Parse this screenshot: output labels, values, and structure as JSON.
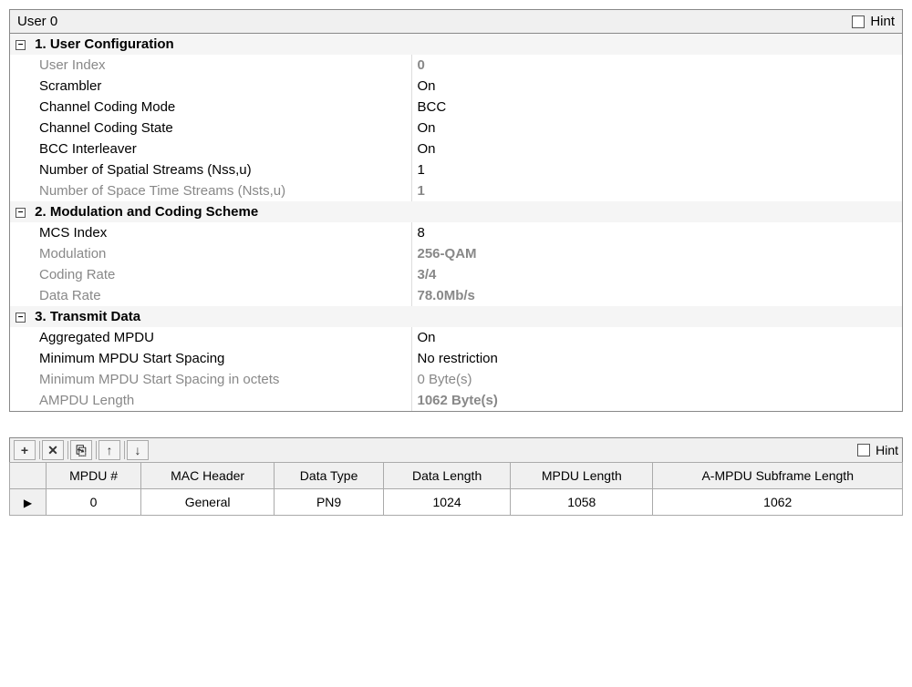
{
  "header": {
    "title": "User 0",
    "hint_label": "Hint"
  },
  "sections": {
    "s1": {
      "title": "1. User Configuration"
    },
    "s2": {
      "title": "2. Modulation and Coding Scheme"
    },
    "s3": {
      "title": "3. Transmit Data"
    }
  },
  "props": {
    "user_index": {
      "label": "User Index",
      "value": "0",
      "readonly": true,
      "boldval": true
    },
    "scrambler": {
      "label": "Scrambler",
      "value": "On"
    },
    "ch_coding_mode": {
      "label": "Channel Coding Mode",
      "value": "BCC"
    },
    "ch_coding_state": {
      "label": "Channel Coding State",
      "value": "On"
    },
    "bcc_interleaver": {
      "label": "BCC Interleaver",
      "value": "On"
    },
    "nss": {
      "label": "Number of Spatial Streams (Nss,u)",
      "value": "1"
    },
    "nsts": {
      "label": "Number of Space Time Streams (Nsts,u)",
      "value": "1",
      "readonly": true,
      "boldval": true
    },
    "mcs_index": {
      "label": "MCS Index",
      "value": "8"
    },
    "modulation": {
      "label": "Modulation",
      "value": "256-QAM",
      "readonly": true,
      "boldval": true
    },
    "coding_rate": {
      "label": "Coding Rate",
      "value": "3/4",
      "readonly": true,
      "boldval": true
    },
    "data_rate": {
      "label": "Data Rate",
      "value": "78.0Mb/s",
      "readonly": true,
      "boldval": true
    },
    "agg_mpdu": {
      "label": "Aggregated MPDU",
      "value": "On"
    },
    "min_mpdu_spacing": {
      "label": "Minimum MPDU Start Spacing",
      "value": "No restriction"
    },
    "min_mpdu_octets": {
      "label": "Minimum MPDU Start Spacing in octets",
      "value": "0 Byte(s)",
      "readonly": true
    },
    "ampdu_length": {
      "label": "AMPDU Length",
      "value": "1062 Byte(s)",
      "readonly": true,
      "boldval": true
    }
  },
  "toolbar": {
    "hint_label": "Hint"
  },
  "table": {
    "columns": [
      "MPDU #",
      "MAC Header",
      "Data Type",
      "Data Length",
      "MPDU Length",
      "A-MPDU Subframe Length"
    ],
    "rows": [
      {
        "indicator": "▶",
        "cells": [
          "0",
          "General",
          "PN9",
          "1024",
          "1058",
          "1062"
        ]
      }
    ]
  },
  "colors": {
    "border": "#888888",
    "header_bg": "#f0f0f0",
    "readonly_text": "#888888",
    "cell_border": "#aaaaaa"
  }
}
